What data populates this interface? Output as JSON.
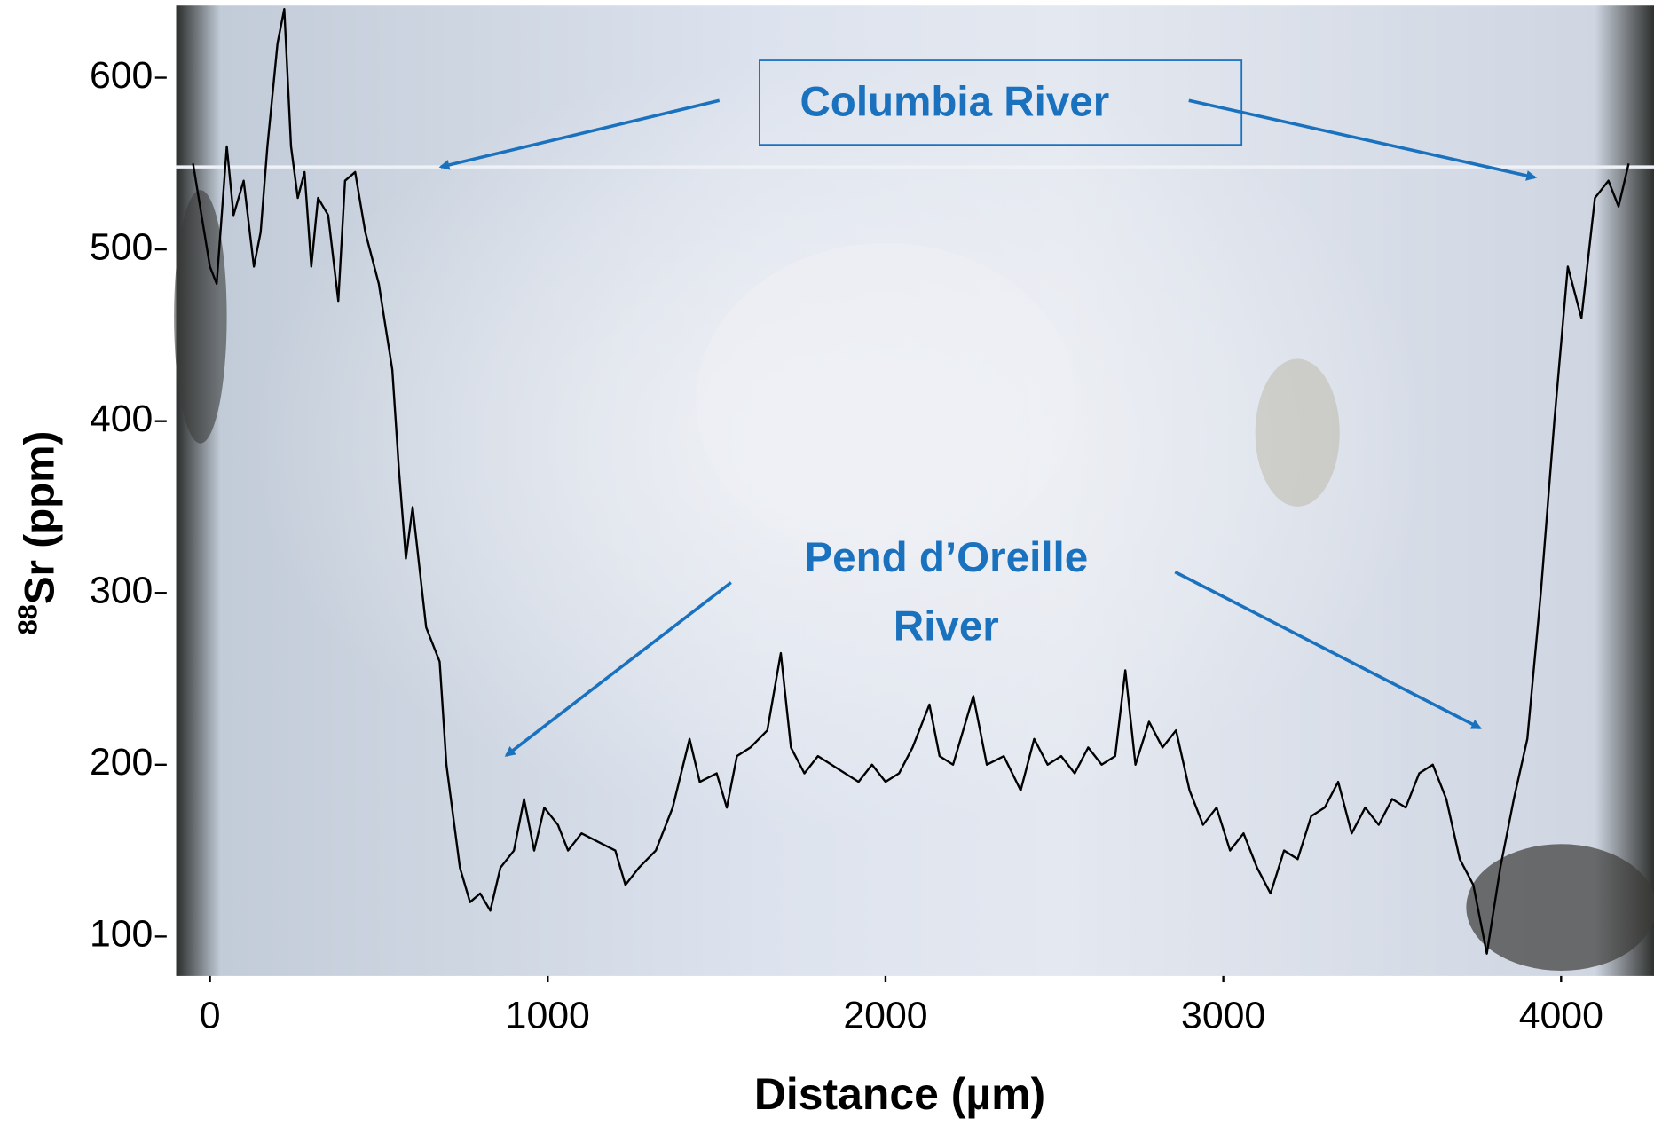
{
  "chart_data": {
    "type": "line",
    "x_label": "Distance (µm)",
    "y_label": {
      "superscript": "88",
      "text": "Sr (ppm)"
    },
    "annotations": {
      "columbia": "Columbia River",
      "pend": [
        "Pend d’Oreille",
        "River"
      ]
    },
    "x": [
      -50,
      0,
      20,
      50,
      70,
      100,
      130,
      150,
      170,
      200,
      220,
      240,
      260,
      280,
      300,
      320,
      350,
      380,
      400,
      430,
      460,
      500,
      540,
      560,
      580,
      600,
      640,
      680,
      700,
      740,
      770,
      800,
      830,
      860,
      900,
      930,
      960,
      990,
      1030,
      1060,
      1100,
      1150,
      1200,
      1230,
      1270,
      1320,
      1370,
      1420,
      1450,
      1500,
      1530,
      1560,
      1600,
      1650,
      1690,
      1720,
      1760,
      1800,
      1840,
      1880,
      1920,
      1960,
      2000,
      2040,
      2080,
      2130,
      2160,
      2200,
      2260,
      2300,
      2350,
      2400,
      2440,
      2480,
      2520,
      2560,
      2600,
      2640,
      2680,
      2710,
      2740,
      2780,
      2820,
      2860,
      2900,
      2940,
      2980,
      3020,
      3060,
      3100,
      3140,
      3180,
      3220,
      3260,
      3300,
      3340,
      3380,
      3420,
      3460,
      3500,
      3540,
      3580,
      3620,
      3660,
      3700,
      3740,
      3780,
      3820,
      3860,
      3900,
      3940,
      3980,
      4020,
      4060,
      4100,
      4140,
      4170,
      4200
    ],
    "series": [
      {
        "color": "#000000",
        "values": [
          550,
          490,
          480,
          560,
          520,
          540,
          490,
          510,
          560,
          620,
          640,
          560,
          530,
          545,
          490,
          530,
          520,
          470,
          540,
          545,
          510,
          480,
          430,
          370,
          320,
          350,
          280,
          260,
          200,
          140,
          120,
          125,
          115,
          140,
          150,
          180,
          150,
          175,
          165,
          150,
          160,
          155,
          150,
          130,
          140,
          150,
          175,
          215,
          190,
          195,
          175,
          205,
          210,
          220,
          265,
          210,
          195,
          205,
          200,
          195,
          190,
          200,
          190,
          195,
          210,
          235,
          205,
          200,
          240,
          200,
          205,
          185,
          215,
          200,
          205,
          195,
          210,
          200,
          205,
          255,
          200,
          225,
          210,
          220,
          185,
          165,
          175,
          150,
          160,
          140,
          125,
          150,
          145,
          170,
          175,
          190,
          160,
          175,
          165,
          180,
          175,
          195,
          200,
          180,
          145,
          130,
          90,
          140,
          180,
          215,
          300,
          400,
          490,
          460,
          530,
          540,
          525,
          550
        ]
      }
    ],
    "xlim": [
      -100,
      4275
    ],
    "ylim": [
      77,
      642
    ],
    "xticks": [
      0,
      1000,
      2000,
      3000,
      4000
    ],
    "yticks": [
      100,
      200,
      300,
      400,
      500,
      600
    ]
  }
}
